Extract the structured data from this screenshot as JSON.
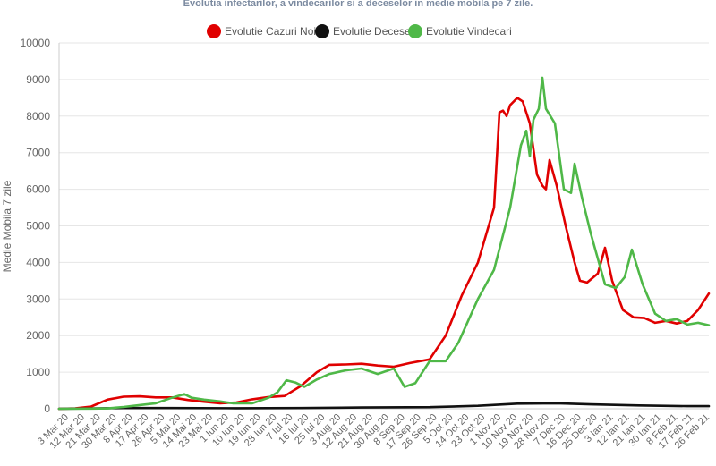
{
  "chart_data": {
    "type": "line",
    "title": "Evolutia infectarilor, a vindecarilor si a deceselor in medie mobila pe 7 zile.",
    "ylabel": "Medie Mobila 7 zile",
    "xlabel": "",
    "ylim": [
      0,
      10000
    ],
    "yticks": [
      0,
      1000,
      2000,
      3000,
      4000,
      5000,
      6000,
      7000,
      8000,
      9000,
      10000
    ],
    "xlim": [
      "2020-03-03",
      "2021-03-01"
    ],
    "grid": true,
    "legend_position": "top-center",
    "x_tick_labels": [
      "3 Mar 20",
      "12 Mar 20",
      "21 Mar 20",
      "30 Mar 20",
      "8 Apr 20",
      "17 Apr 20",
      "26 Apr 20",
      "5 Mai 20",
      "14 Mai 20",
      "23 Mai 20",
      "1 Iun 20",
      "10 Iun 20",
      "19 Iun 20",
      "28 Iun 20",
      "7 Iul 20",
      "16 Iul 20",
      "25 Iul 20",
      "3 Aug 20",
      "12 Aug 20",
      "21 Aug 20",
      "30 Aug 20",
      "8 Sep 20",
      "17 Sep 20",
      "26 Sep 20",
      "5 Oct 20",
      "14 Oct 20",
      "23 Oct 20",
      "1 Nov 20",
      "10 Nov 20",
      "19 Nov 20",
      "28 Nov 20",
      "7 Dec 20",
      "16 Dec 20",
      "25 Dec 20",
      "3 Ian 21",
      "12 Ian 21",
      "21 Ian 21",
      "30 Ian 21",
      "8 Feb 21",
      "17 Feb 21",
      "26 Feb 21"
    ],
    "series": [
      {
        "name": "Evolutie Cazuri Noi",
        "color": "#e00000",
        "points": [
          [
            "2020-03-03",
            0
          ],
          [
            "2020-03-12",
            10
          ],
          [
            "2020-03-21",
            60
          ],
          [
            "2020-03-30",
            250
          ],
          [
            "2020-04-08",
            330
          ],
          [
            "2020-04-17",
            340
          ],
          [
            "2020-04-26",
            310
          ],
          [
            "2020-05-05",
            310
          ],
          [
            "2020-05-14",
            240
          ],
          [
            "2020-05-23",
            190
          ],
          [
            "2020-06-01",
            150
          ],
          [
            "2020-06-10",
            170
          ],
          [
            "2020-06-19",
            260
          ],
          [
            "2020-06-28",
            320
          ],
          [
            "2020-07-07",
            350
          ],
          [
            "2020-07-16",
            620
          ],
          [
            "2020-07-25",
            1000
          ],
          [
            "2020-08-01",
            1200
          ],
          [
            "2020-08-10",
            1210
          ],
          [
            "2020-08-19",
            1230
          ],
          [
            "2020-08-28",
            1180
          ],
          [
            "2020-09-06",
            1150
          ],
          [
            "2020-09-15",
            1250
          ],
          [
            "2020-09-26",
            1350
          ],
          [
            "2020-10-05",
            2000
          ],
          [
            "2020-10-14",
            3100
          ],
          [
            "2020-10-23",
            4000
          ],
          [
            "2020-11-01",
            5500
          ],
          [
            "2020-11-04",
            8100
          ],
          [
            "2020-11-06",
            8150
          ],
          [
            "2020-11-08",
            8000
          ],
          [
            "2020-11-10",
            8300
          ],
          [
            "2020-11-14",
            8500
          ],
          [
            "2020-11-17",
            8400
          ],
          [
            "2020-11-21",
            7800
          ],
          [
            "2020-11-25",
            6400
          ],
          [
            "2020-11-28",
            6100
          ],
          [
            "2020-11-30",
            6000
          ],
          [
            "2020-12-02",
            6800
          ],
          [
            "2020-12-06",
            6100
          ],
          [
            "2020-12-11",
            5000
          ],
          [
            "2020-12-16",
            4000
          ],
          [
            "2020-12-19",
            3500
          ],
          [
            "2020-12-23",
            3450
          ],
          [
            "2020-12-29",
            3700
          ],
          [
            "2021-01-02",
            4400
          ],
          [
            "2021-01-06",
            3500
          ],
          [
            "2021-01-12",
            2700
          ],
          [
            "2021-01-18",
            2500
          ],
          [
            "2021-01-24",
            2480
          ],
          [
            "2021-01-30",
            2350
          ],
          [
            "2021-02-05",
            2400
          ],
          [
            "2021-02-11",
            2330
          ],
          [
            "2021-02-17",
            2400
          ],
          [
            "2021-02-23",
            2700
          ],
          [
            "2021-03-01",
            3150
          ]
        ]
      },
      {
        "name": "Evolutie Decese",
        "color": "#111111",
        "points": [
          [
            "2020-03-03",
            0
          ],
          [
            "2020-04-08",
            20
          ],
          [
            "2020-05-05",
            20
          ],
          [
            "2020-06-10",
            15
          ],
          [
            "2020-07-16",
            20
          ],
          [
            "2020-08-19",
            35
          ],
          [
            "2020-09-26",
            45
          ],
          [
            "2020-10-23",
            80
          ],
          [
            "2020-11-14",
            140
          ],
          [
            "2020-12-06",
            150
          ],
          [
            "2020-12-25",
            120
          ],
          [
            "2021-01-21",
            90
          ],
          [
            "2021-02-17",
            70
          ],
          [
            "2021-03-01",
            70
          ]
        ]
      },
      {
        "name": "Evolutie Vindecari",
        "color": "#4fb848",
        "points": [
          [
            "2020-03-03",
            0
          ],
          [
            "2020-03-21",
            5
          ],
          [
            "2020-03-30",
            10
          ],
          [
            "2020-04-08",
            50
          ],
          [
            "2020-04-17",
            100
          ],
          [
            "2020-04-26",
            150
          ],
          [
            "2020-05-05",
            300
          ],
          [
            "2020-05-12",
            400
          ],
          [
            "2020-05-16",
            300
          ],
          [
            "2020-05-23",
            250
          ],
          [
            "2020-06-01",
            200
          ],
          [
            "2020-06-08",
            150
          ],
          [
            "2020-06-19",
            150
          ],
          [
            "2020-06-28",
            300
          ],
          [
            "2020-07-03",
            450
          ],
          [
            "2020-07-08",
            780
          ],
          [
            "2020-07-13",
            720
          ],
          [
            "2020-07-18",
            600
          ],
          [
            "2020-07-25",
            800
          ],
          [
            "2020-08-01",
            950
          ],
          [
            "2020-08-10",
            1050
          ],
          [
            "2020-08-19",
            1100
          ],
          [
            "2020-08-28",
            950
          ],
          [
            "2020-09-06",
            1100
          ],
          [
            "2020-09-12",
            600
          ],
          [
            "2020-09-18",
            700
          ],
          [
            "2020-09-26",
            1300
          ],
          [
            "2020-10-05",
            1300
          ],
          [
            "2020-10-12",
            1800
          ],
          [
            "2020-10-23",
            3000
          ],
          [
            "2020-11-01",
            3800
          ],
          [
            "2020-11-10",
            5500
          ],
          [
            "2020-11-16",
            7200
          ],
          [
            "2020-11-19",
            7600
          ],
          [
            "2020-11-21",
            6900
          ],
          [
            "2020-11-23",
            7900
          ],
          [
            "2020-11-26",
            8200
          ],
          [
            "2020-11-28",
            9050
          ],
          [
            "2020-11-30",
            8200
          ],
          [
            "2020-12-05",
            7800
          ],
          [
            "2020-12-10",
            6000
          ],
          [
            "2020-12-14",
            5900
          ],
          [
            "2020-12-16",
            6700
          ],
          [
            "2020-12-20",
            5800
          ],
          [
            "2020-12-25",
            4800
          ],
          [
            "2020-12-29",
            4100
          ],
          [
            "2021-01-02",
            3400
          ],
          [
            "2021-01-08",
            3300
          ],
          [
            "2021-01-13",
            3600
          ],
          [
            "2021-01-17",
            4350
          ],
          [
            "2021-01-23",
            3400
          ],
          [
            "2021-01-30",
            2600
          ],
          [
            "2021-02-05",
            2400
          ],
          [
            "2021-02-11",
            2450
          ],
          [
            "2021-02-17",
            2300
          ],
          [
            "2021-02-23",
            2350
          ],
          [
            "2021-03-01",
            2280
          ]
        ]
      }
    ]
  }
}
